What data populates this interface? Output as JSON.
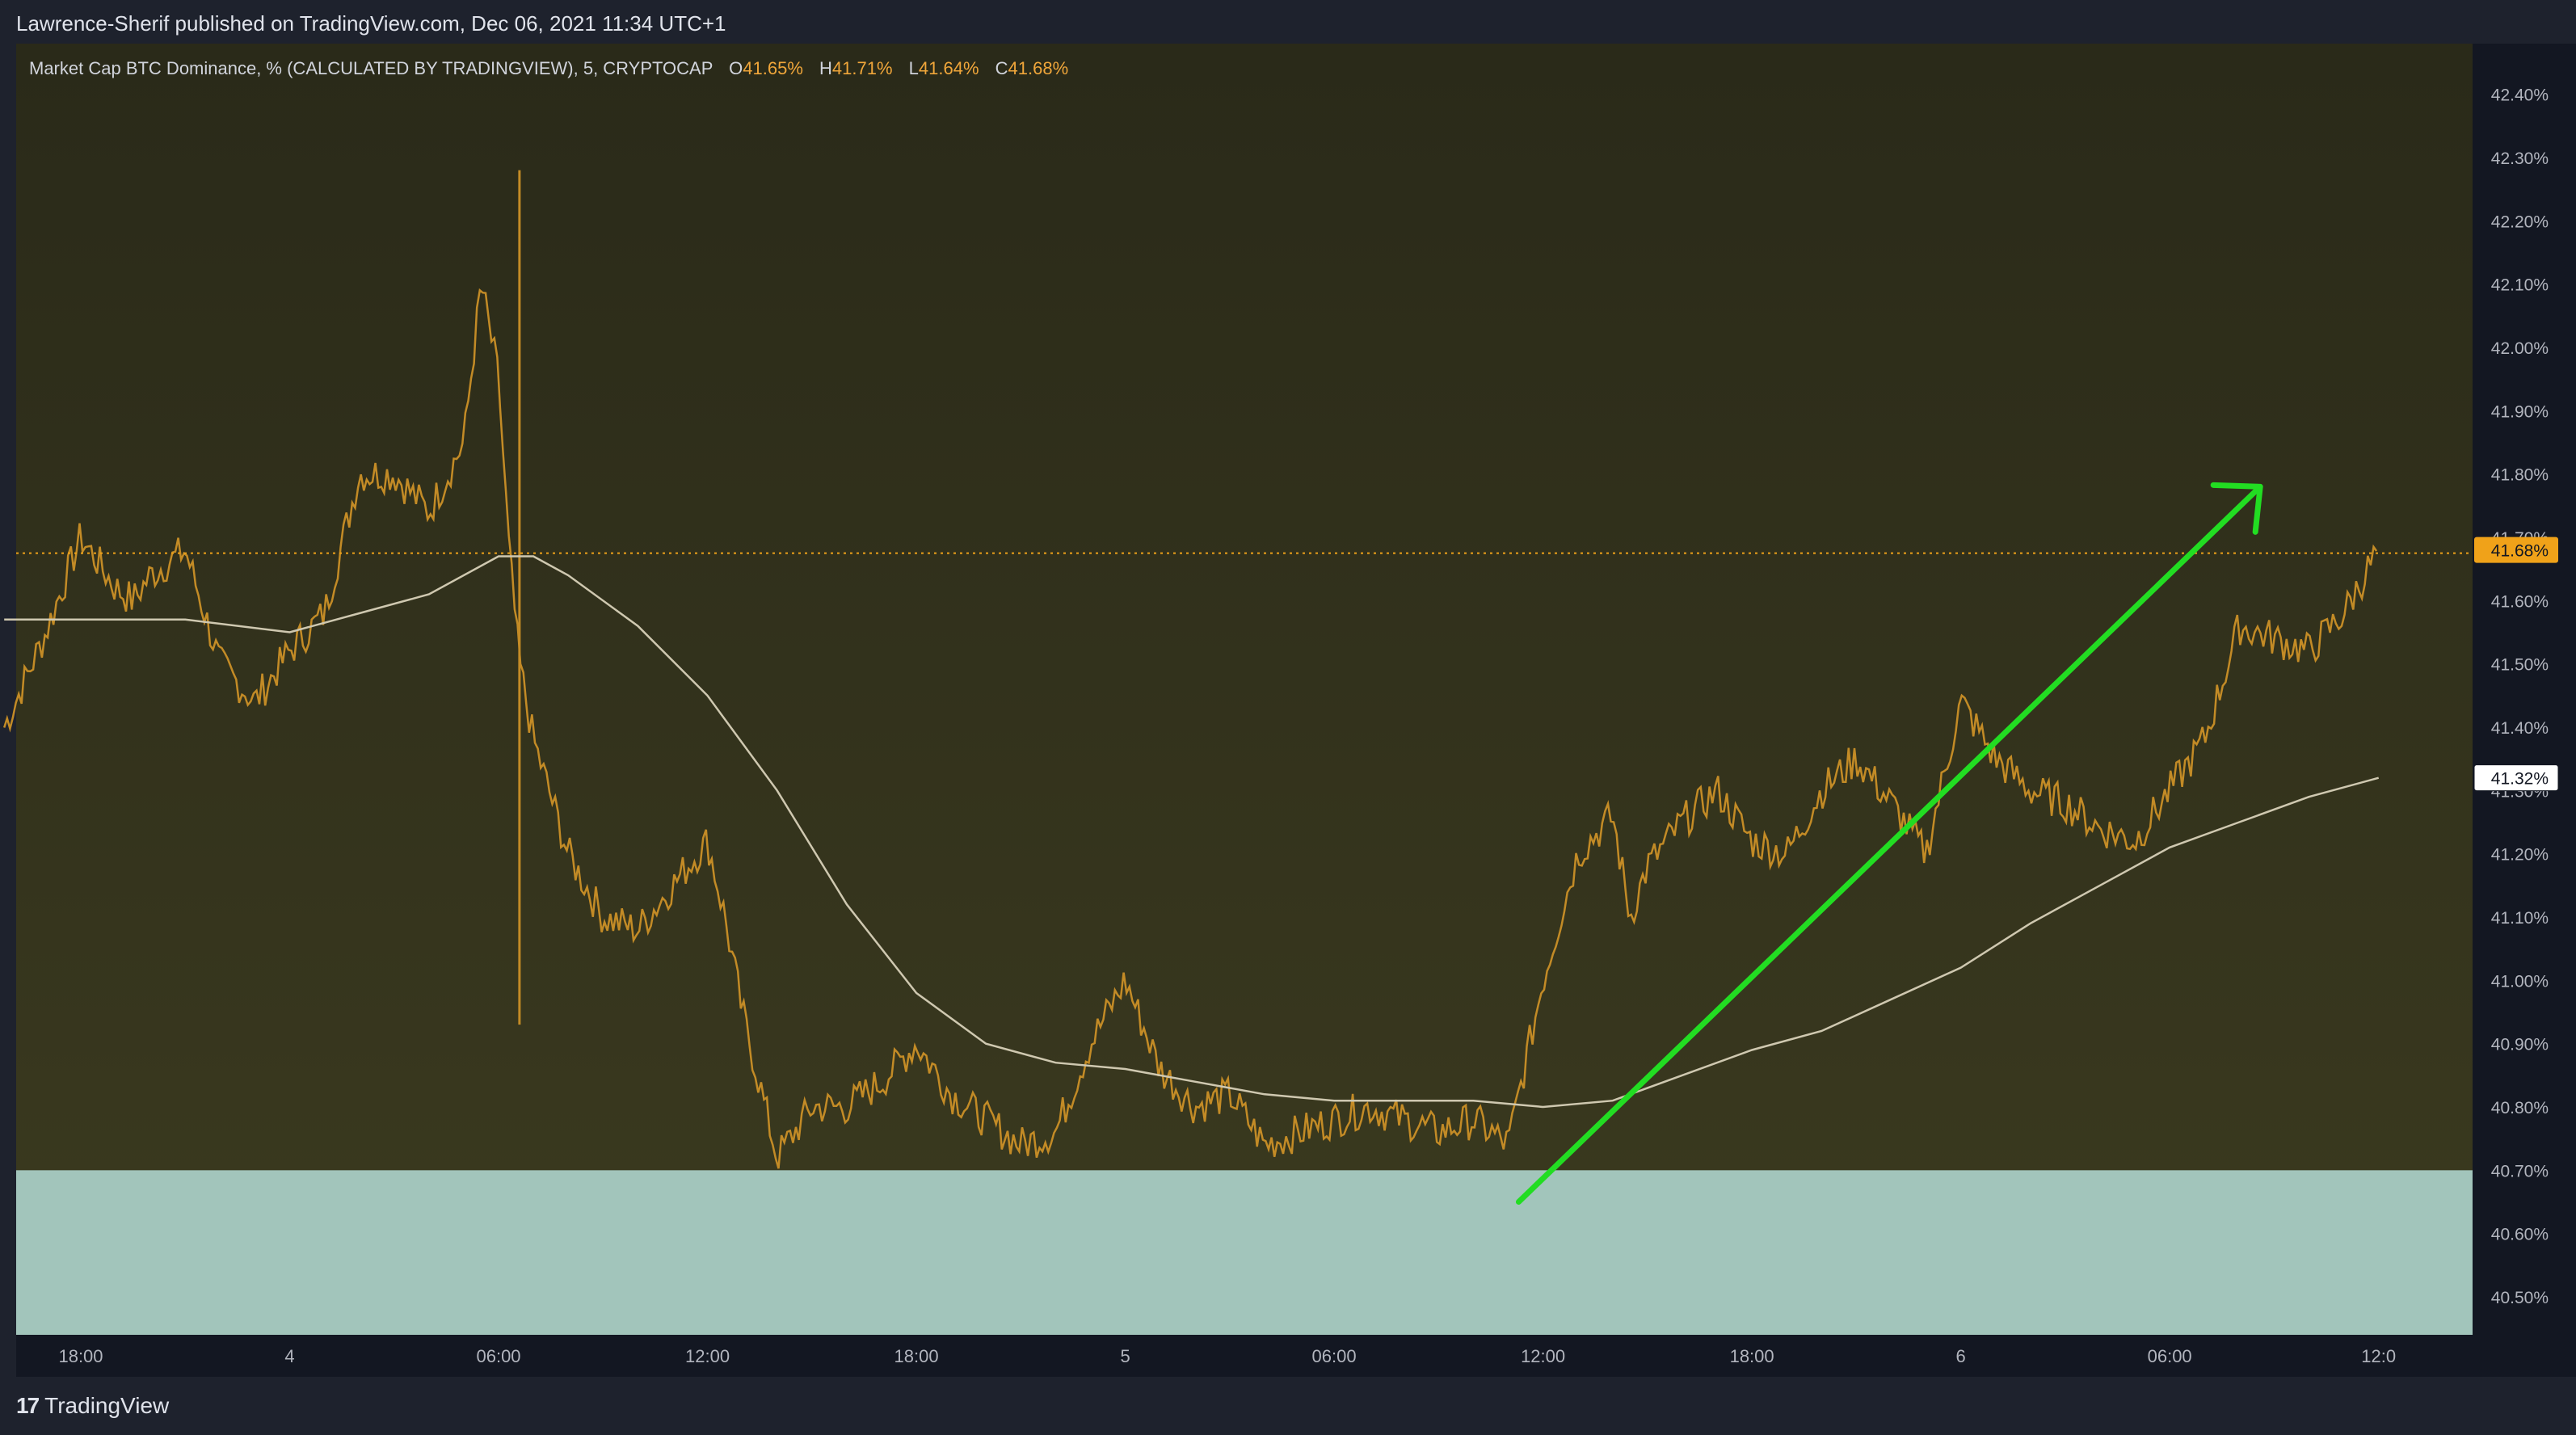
{
  "header": {
    "publish_text": "Lawrence-Sherif published on TradingView.com, Dec 06, 2021 11:34 UTC+1"
  },
  "legend": {
    "symbol_text": "Market Cap BTC Dominance, % (CALCULATED BY TRADINGVIEW), 5, CRYPTOCAP",
    "open_label": "O",
    "open_value": "41.65%",
    "high_label": "H",
    "high_value": "41.71%",
    "low_label": "L",
    "low_value": "41.64%",
    "close_label": "C",
    "close_value": "41.68%"
  },
  "footer": {
    "brand": "TradingView",
    "brand_mark": "17"
  },
  "colors": {
    "bg_top": "#2a2a19",
    "bg_bottom": "#3b3a1f",
    "candle": "#c38b26",
    "ma_line": "#cfc8b0",
    "support_zone": "#a2c5bb",
    "arrow": "#22dd22",
    "price_tag": "#f0a219"
  },
  "chart_data": {
    "type": "line",
    "title": "",
    "y_axis_unit": "%",
    "y_ticks": [
      "42.40%",
      "42.30%",
      "42.20%",
      "42.10%",
      "42.00%",
      "41.90%",
      "41.80%",
      "41.70%",
      "41.60%",
      "41.50%",
      "41.40%",
      "41.30%",
      "41.20%",
      "41.10%",
      "41.00%",
      "40.90%",
      "40.80%",
      "40.70%",
      "40.60%",
      "40.50%"
    ],
    "ylim": [
      40.44,
      42.48
    ],
    "x_ticks": [
      "18:00",
      "4",
      "06:00",
      "12:00",
      "18:00",
      "5",
      "06:00",
      "12:00",
      "18:00",
      "6",
      "06:00",
      "12:0"
    ],
    "x_range_hours": [
      0,
      66.5
    ],
    "last_price_label": "41.68%",
    "ma_label": "41.32%",
    "support_zone": [
      40.43,
      40.7
    ],
    "series": [
      {
        "values_x_hours": [
          -2.2,
          -1,
          0,
          1,
          1.5,
          2,
          3,
          4,
          5,
          5.5,
          6,
          7,
          8,
          9,
          10,
          11,
          11.5,
          12,
          12.3,
          12.6,
          13,
          14,
          15,
          16,
          17,
          18,
          18.5,
          19,
          20,
          21,
          22,
          23,
          24,
          25,
          26,
          27,
          28,
          29,
          30,
          31,
          32,
          33,
          34,
          35,
          36,
          37,
          38,
          39,
          40,
          41,
          42,
          43,
          44,
          44.5,
          45,
          46,
          47,
          48,
          49,
          50,
          51,
          52,
          53,
          54,
          55,
          56,
          57,
          58,
          59,
          60,
          61,
          62,
          63,
          64,
          65,
          66
        ],
        "values": [
          41.4,
          41.55,
          41.7,
          41.62,
          41.6,
          41.64,
          41.68,
          41.5,
          41.44,
          41.48,
          41.52,
          41.58,
          41.8,
          41.8,
          41.74,
          41.85,
          42.1,
          41.95,
          41.68,
          41.5,
          41.38,
          41.2,
          41.1,
          41.08,
          41.15,
          41.22,
          41.1,
          40.95,
          40.72,
          40.8,
          40.8,
          40.84,
          40.9,
          40.82,
          40.78,
          40.74,
          40.76,
          40.9,
          41.0,
          40.86,
          40.8,
          40.82,
          40.74,
          40.76,
          40.78,
          40.8,
          40.78,
          40.76,
          40.78,
          40.74,
          41.0,
          41.2,
          41.26,
          41.1,
          41.18,
          41.25,
          41.3,
          41.22,
          41.2,
          41.3,
          41.35,
          41.28,
          41.2,
          41.44,
          41.35,
          41.3,
          41.28,
          41.24,
          41.22,
          41.3,
          41.38,
          41.56,
          41.54,
          41.52,
          41.58,
          41.68
        ]
      },
      {
        "values_x_hours": [
          -2.2,
          0,
          3,
          6,
          8,
          10,
          12,
          13,
          14,
          16,
          18,
          20,
          22,
          24,
          26,
          28,
          30,
          32,
          34,
          36,
          38,
          40,
          42,
          44,
          46,
          48,
          50,
          52,
          54,
          56,
          58,
          60,
          62,
          64,
          66
        ],
        "values": [
          41.57,
          41.57,
          41.57,
          41.55,
          41.58,
          41.61,
          41.67,
          41.67,
          41.64,
          41.56,
          41.45,
          41.3,
          41.12,
          40.98,
          40.9,
          40.87,
          40.86,
          40.84,
          40.82,
          40.81,
          40.81,
          40.81,
          40.8,
          40.81,
          40.85,
          40.89,
          40.92,
          40.97,
          41.02,
          41.09,
          41.15,
          41.21,
          41.25,
          41.29,
          41.32
        ]
      }
    ],
    "annotation_arrow": {
      "from": [
        41.3,
        40.65
      ],
      "to": [
        62.6,
        41.78
      ]
    }
  }
}
